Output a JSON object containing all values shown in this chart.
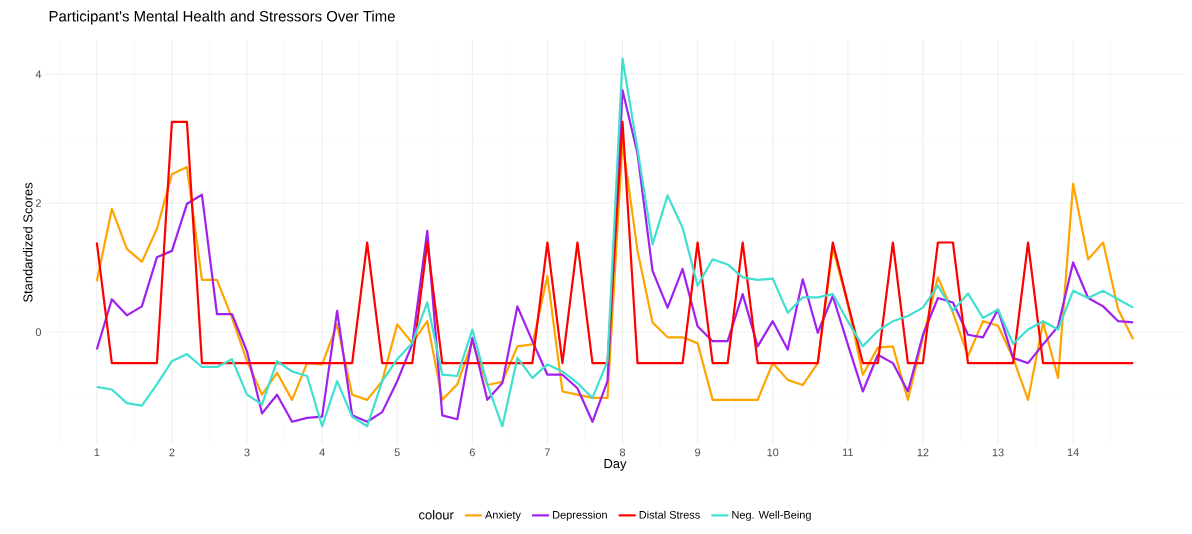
{
  "chart_data": {
    "type": "line",
    "title": "Participant's Mental Health and Stressors Over Time",
    "xlabel": "Day",
    "ylabel": "Standardized Scores",
    "legend_title": "colour",
    "legend": "bottom",
    "grid": true,
    "xlim": [
      0.31,
      15.49
    ],
    "ylim": [
      -1.75,
      4.53
    ],
    "xticks": [
      1,
      2,
      3,
      4,
      5,
      6,
      7,
      8,
      9,
      10,
      11,
      12,
      13,
      14
    ],
    "yticks": [
      0,
      2,
      4
    ],
    "x": [
      1,
      1.2,
      1.4,
      1.6,
      1.8,
      2,
      2.2,
      2.4,
      2.6,
      2.8,
      3,
      3.2,
      3.4,
      3.6,
      3.8,
      4,
      4.2,
      4.4,
      4.6,
      4.8,
      5,
      5.2,
      5.4,
      5.6,
      5.8,
      6,
      6.2,
      6.4,
      6.6,
      6.8,
      7,
      7.2,
      7.4,
      7.6,
      7.8,
      8,
      8.2,
      8.4,
      8.6,
      8.8,
      9,
      9.2,
      9.4,
      9.6,
      9.8,
      10,
      10.2,
      10.4,
      10.6,
      10.8,
      11,
      11.2,
      11.4,
      11.6,
      11.8,
      12,
      12.2,
      12.4,
      12.6,
      12.8,
      13,
      13.2,
      13.4,
      13.6,
      13.8,
      14,
      14.2,
      14.4,
      14.6,
      14.8
    ],
    "series": [
      {
        "name": "Anxiety",
        "color": "#ffa500",
        "values": [
          0.79,
          1.91,
          1.29,
          1.09,
          1.6,
          2.45,
          2.56,
          0.81,
          0.81,
          0.22,
          -0.45,
          -0.97,
          -0.63,
          -1.05,
          -0.48,
          -0.5,
          0.12,
          -0.97,
          -1.05,
          -0.76,
          0.12,
          -0.17,
          0.17,
          -1.05,
          -0.81,
          -0.14,
          -0.82,
          -0.77,
          -0.22,
          -0.19,
          0.87,
          -0.92,
          -0.97,
          -1.02,
          -1.02,
          2.95,
          1.26,
          0.15,
          -0.08,
          -0.08,
          -0.17,
          -1.05,
          -1.05,
          -1.05,
          -1.05,
          -0.48,
          -0.74,
          -0.82,
          -0.48,
          1.31,
          0.43,
          -0.66,
          -0.24,
          -0.22,
          -1.05,
          -0.09,
          0.85,
          0.3,
          -0.37,
          0.17,
          0.1,
          -0.4,
          -1.05,
          0.15,
          -0.71,
          2.3,
          1.13,
          1.39,
          0.35,
          -0.11
        ]
      },
      {
        "name": "Depression",
        "color": "#a020f0",
        "values": [
          -0.27,
          0.51,
          0.26,
          0.4,
          1.16,
          1.26,
          1.99,
          2.13,
          0.28,
          0.28,
          -0.3,
          -1.26,
          -0.97,
          -1.39,
          -1.33,
          -1.31,
          0.33,
          -1.29,
          -1.39,
          -1.24,
          -0.76,
          -0.19,
          1.57,
          -1.29,
          -1.35,
          -0.09,
          -1.05,
          -0.79,
          0.4,
          -0.14,
          -0.66,
          -0.66,
          -0.87,
          -1.39,
          -0.76,
          3.75,
          2.77,
          0.95,
          0.38,
          0.98,
          0.09,
          -0.14,
          -0.14,
          0.59,
          -0.22,
          0.17,
          -0.27,
          0.82,
          -0.01,
          0.56,
          -0.19,
          -0.92,
          -0.35,
          -0.48,
          -0.92,
          -0.04,
          0.53,
          0.46,
          -0.04,
          -0.08,
          0.35,
          -0.4,
          -0.48,
          -0.19,
          0.09,
          1.08,
          0.53,
          0.4,
          0.17,
          0.15
        ]
      },
      {
        "name": "Distal Stress",
        "color": "#ff0000",
        "values": [
          1.39,
          -0.48,
          -0.48,
          -0.48,
          -0.48,
          3.26,
          3.26,
          -0.48,
          -0.48,
          -0.48,
          -0.48,
          -0.48,
          -0.48,
          -0.48,
          -0.48,
          -0.48,
          -0.48,
          -0.48,
          1.39,
          -0.48,
          -0.48,
          -0.48,
          1.39,
          -0.48,
          -0.48,
          -0.48,
          -0.48,
          -0.48,
          -0.48,
          -0.48,
          1.39,
          -0.48,
          1.39,
          -0.48,
          -0.48,
          3.26,
          -0.48,
          -0.48,
          -0.48,
          -0.48,
          1.39,
          -0.48,
          -0.48,
          1.39,
          -0.48,
          -0.48,
          -0.48,
          -0.48,
          -0.48,
          1.39,
          0.45,
          -0.48,
          -0.48,
          1.39,
          -0.48,
          -0.48,
          1.39,
          1.39,
          -0.48,
          -0.48,
          -0.48,
          -0.48,
          1.39,
          -0.48,
          -0.48,
          -0.48,
          -0.48,
          -0.48,
          -0.48,
          -0.48
        ]
      },
      {
        "name": "Neg. Well-Being",
        "color": "#40e0d0",
        "values": [
          -0.85,
          -0.89,
          -1.1,
          -1.14,
          -0.81,
          -0.45,
          -0.34,
          -0.54,
          -0.54,
          -0.42,
          -0.97,
          -1.12,
          -0.45,
          -0.61,
          -0.68,
          -1.46,
          -0.76,
          -1.31,
          -1.46,
          -0.76,
          -0.42,
          -0.17,
          0.46,
          -0.66,
          -0.68,
          0.04,
          -0.81,
          -1.46,
          -0.4,
          -0.71,
          -0.5,
          -0.61,
          -0.79,
          -1.02,
          -0.45,
          4.24,
          2.84,
          1.36,
          2.12,
          1.62,
          0.72,
          1.13,
          1.05,
          0.85,
          0.81,
          0.83,
          0.3,
          0.54,
          0.54,
          0.59,
          0.17,
          -0.22,
          0.02,
          0.17,
          0.25,
          0.38,
          0.72,
          0.33,
          0.6,
          0.22,
          0.35,
          -0.18,
          0.04,
          0.17,
          0.04,
          0.64,
          0.53,
          0.64,
          0.51,
          0.38
        ]
      }
    ]
  }
}
